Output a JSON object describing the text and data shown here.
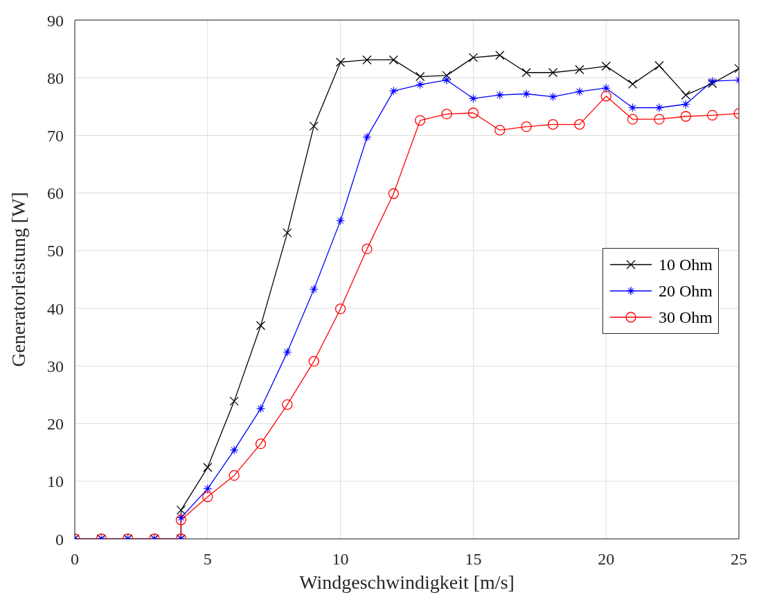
{
  "chart_data": {
    "type": "line",
    "xlabel": "Windgeschwindigkeit [m/s]",
    "ylabel": "Generatorleistung [W]",
    "x": [
      0,
      1,
      2,
      3,
      4,
      4,
      5,
      6,
      7,
      8,
      9,
      10,
      11,
      12,
      13,
      14,
      15,
      16,
      17,
      18,
      19,
      20,
      21,
      22,
      23,
      24,
      25
    ],
    "series": [
      {
        "name": "10 Ohm",
        "color": "#000000",
        "marker": "cross",
        "values": [
          0,
          0,
          0,
          0,
          0,
          5,
          12.4,
          23.9,
          37,
          53.1,
          71.6,
          82.7,
          83.1,
          83.1,
          80.2,
          80.4,
          83.5,
          83.9,
          80.9,
          80.9,
          81.4,
          82,
          78.9,
          82.1,
          77,
          79,
          81.6
        ]
      },
      {
        "name": "20 Ohm",
        "color": "#0000ff",
        "marker": "star",
        "values": [
          0,
          0,
          0,
          0,
          0,
          3.7,
          8.7,
          15.4,
          22.6,
          32.4,
          43.3,
          55.2,
          69.7,
          77.7,
          78.8,
          79.6,
          76.4,
          77,
          77.2,
          76.7,
          77.6,
          78.2,
          74.8,
          74.8,
          75.4,
          79.4,
          79.6
        ]
      },
      {
        "name": "30 Ohm",
        "color": "#ff0000",
        "marker": "circle",
        "values": [
          0,
          0,
          0,
          0,
          0,
          3.3,
          7.3,
          11,
          16.5,
          23.3,
          30.8,
          39.9,
          50.3,
          59.9,
          72.6,
          73.7,
          73.9,
          70.9,
          71.5,
          71.9,
          71.9,
          76.8,
          72.8,
          72.8,
          73.3,
          73.5,
          73.8
        ]
      }
    ],
    "xlim": [
      0,
      25
    ],
    "xticks": [
      0,
      5,
      10,
      15,
      20,
      25
    ],
    "ylim": [
      0,
      90
    ],
    "yticks": [
      0,
      10,
      20,
      30,
      40,
      50,
      60,
      70,
      80,
      90
    ],
    "grid": true,
    "legend": "right",
    "line_style": "solid"
  }
}
